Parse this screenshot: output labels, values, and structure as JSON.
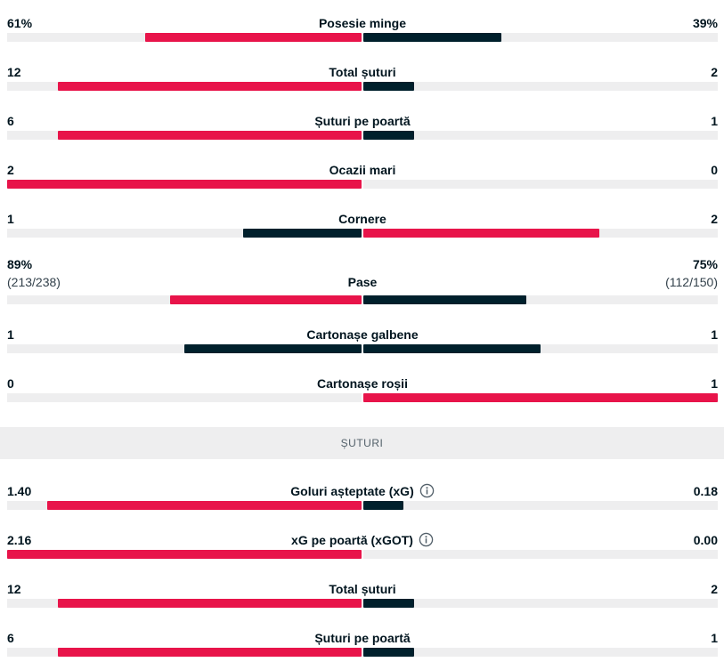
{
  "colors": {
    "home": "#e8144a",
    "away": "#00202c",
    "track": "#eeeeef"
  },
  "top_stats": [
    {
      "label": "Posesie minge",
      "home": "61%",
      "away": "39%",
      "home_frac": 0.61,
      "away_frac": 0.39,
      "home_color": "red",
      "away_color": "dark"
    },
    {
      "label": "Total șuturi",
      "home": "12",
      "away": "2",
      "home_frac": 0.857,
      "away_frac": 0.143,
      "home_color": "red",
      "away_color": "dark"
    },
    {
      "label": "Șuturi pe poartă",
      "home": "6",
      "away": "1",
      "home_frac": 0.857,
      "away_frac": 0.143,
      "home_color": "red",
      "away_color": "dark"
    },
    {
      "label": "Ocazii mari",
      "home": "2",
      "away": "0",
      "home_frac": 1.0,
      "away_frac": 0.0,
      "home_color": "red",
      "away_color": "dark"
    },
    {
      "label": "Cornere",
      "home": "1",
      "away": "2",
      "home_frac": 0.333,
      "away_frac": 0.667,
      "home_color": "dark",
      "away_color": "red"
    },
    {
      "label": "Pase",
      "home": "89%",
      "away": "75%",
      "home_sub": "(213/238)",
      "away_sub": "(112/150)",
      "home_frac": 0.54,
      "away_frac": 0.46,
      "home_color": "red",
      "away_color": "dark"
    },
    {
      "label": "Cartonașe galbene",
      "home": "1",
      "away": "1",
      "home_frac": 0.5,
      "away_frac": 0.5,
      "home_color": "dark",
      "away_color": "dark"
    },
    {
      "label": "Cartonașe roșii",
      "home": "0",
      "away": "1",
      "home_frac": 0.0,
      "away_frac": 1.0,
      "home_color": "dark",
      "away_color": "red"
    }
  ],
  "section_title": "ȘUTURI",
  "bottom_stats": [
    {
      "label": "Goluri așteptate (xG)",
      "info_icon": "info-icon",
      "home": "1.40",
      "away": "0.18",
      "home_frac": 0.886,
      "away_frac": 0.114,
      "home_color": "red",
      "away_color": "dark"
    },
    {
      "label": "xG pe poartă (xGOT)",
      "info_icon": "info-icon",
      "home": "2.16",
      "away": "0.00",
      "home_frac": 1.0,
      "away_frac": 0.0,
      "home_color": "red",
      "away_color": "dark"
    },
    {
      "label": "Total șuturi",
      "home": "12",
      "away": "2",
      "home_frac": 0.857,
      "away_frac": 0.143,
      "home_color": "red",
      "away_color": "dark"
    },
    {
      "label": "Șuturi pe poartă",
      "home": "6",
      "away": "1",
      "home_frac": 0.857,
      "away_frac": 0.143,
      "home_color": "red",
      "away_color": "dark"
    }
  ]
}
